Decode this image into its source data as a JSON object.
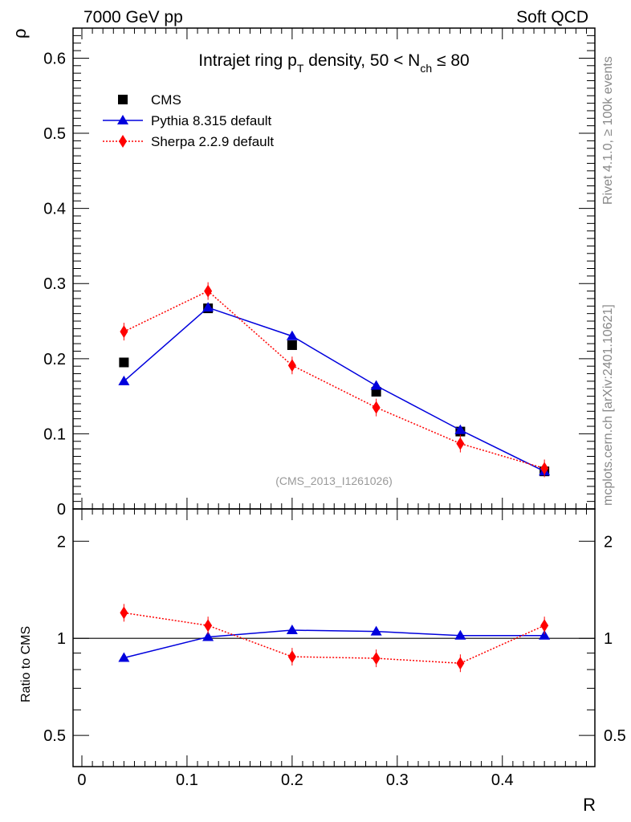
{
  "header": {
    "left": "7000 GeV pp",
    "right": "Soft QCD"
  },
  "side": {
    "rivet": "Rivet 4.1.0, ≥ 100k events",
    "mcplots": "mcplots.cern.ch [arXiv:2401.10621]"
  },
  "chart_data": [
    {
      "type": "line",
      "title": "Intrajet ring pT density, 50 < Nch ≤ 80",
      "title_parts": {
        "a": "Intrajet ring p",
        "sub1": "T",
        "b": " density, 50 < N",
        "sub2": "ch",
        "c": " ≤ 80"
      },
      "ylabel": "ρ",
      "xlabel": "R",
      "xlim": [
        -0.0084,
        0.488
      ],
      "ylim": [
        0,
        0.64
      ],
      "yticks": [
        "0",
        "0.1",
        "0.2",
        "0.3",
        "0.4",
        "0.5",
        "0.6"
      ],
      "watermark": "(CMS_2013_I1261026)",
      "x": [
        0.04,
        0.12,
        0.2,
        0.28,
        0.36,
        0.44
      ],
      "series": [
        {
          "name": "CMS",
          "marker": "square",
          "color": "#000000",
          "values": [
            0.195,
            0.267,
            0.218,
            0.156,
            0.103,
            0.05
          ]
        },
        {
          "name": "Pythia 8.315 default",
          "marker": "triangle",
          "color": "#0000dd",
          "values": [
            0.17,
            0.268,
            0.23,
            0.164,
            0.105,
            0.05
          ]
        },
        {
          "name": "Sherpa 2.2.9 default",
          "marker": "diamond",
          "color": "#ff0000",
          "values": [
            0.236,
            0.29,
            0.191,
            0.135,
            0.087,
            0.054
          ]
        }
      ],
      "legend": "top-left"
    },
    {
      "type": "line",
      "ylabel": "Ratio to CMS",
      "yscale": "log",
      "ylim": [
        0.4,
        2.52
      ],
      "yticks": [
        "0.5",
        "1",
        "2"
      ],
      "xticks": [
        "0",
        "0.1",
        "0.2",
        "0.3",
        "0.4"
      ],
      "x": [
        0.04,
        0.12,
        0.2,
        0.28,
        0.36,
        0.44
      ],
      "series": [
        {
          "name": "Pythia 8.315 default",
          "values": [
            0.87,
            1.01,
            1.06,
            1.05,
            1.02,
            1.02
          ]
        },
        {
          "name": "Sherpa 2.2.9 default",
          "values": [
            1.2,
            1.096,
            0.877,
            0.867,
            0.837,
            1.096
          ]
        }
      ]
    }
  ]
}
